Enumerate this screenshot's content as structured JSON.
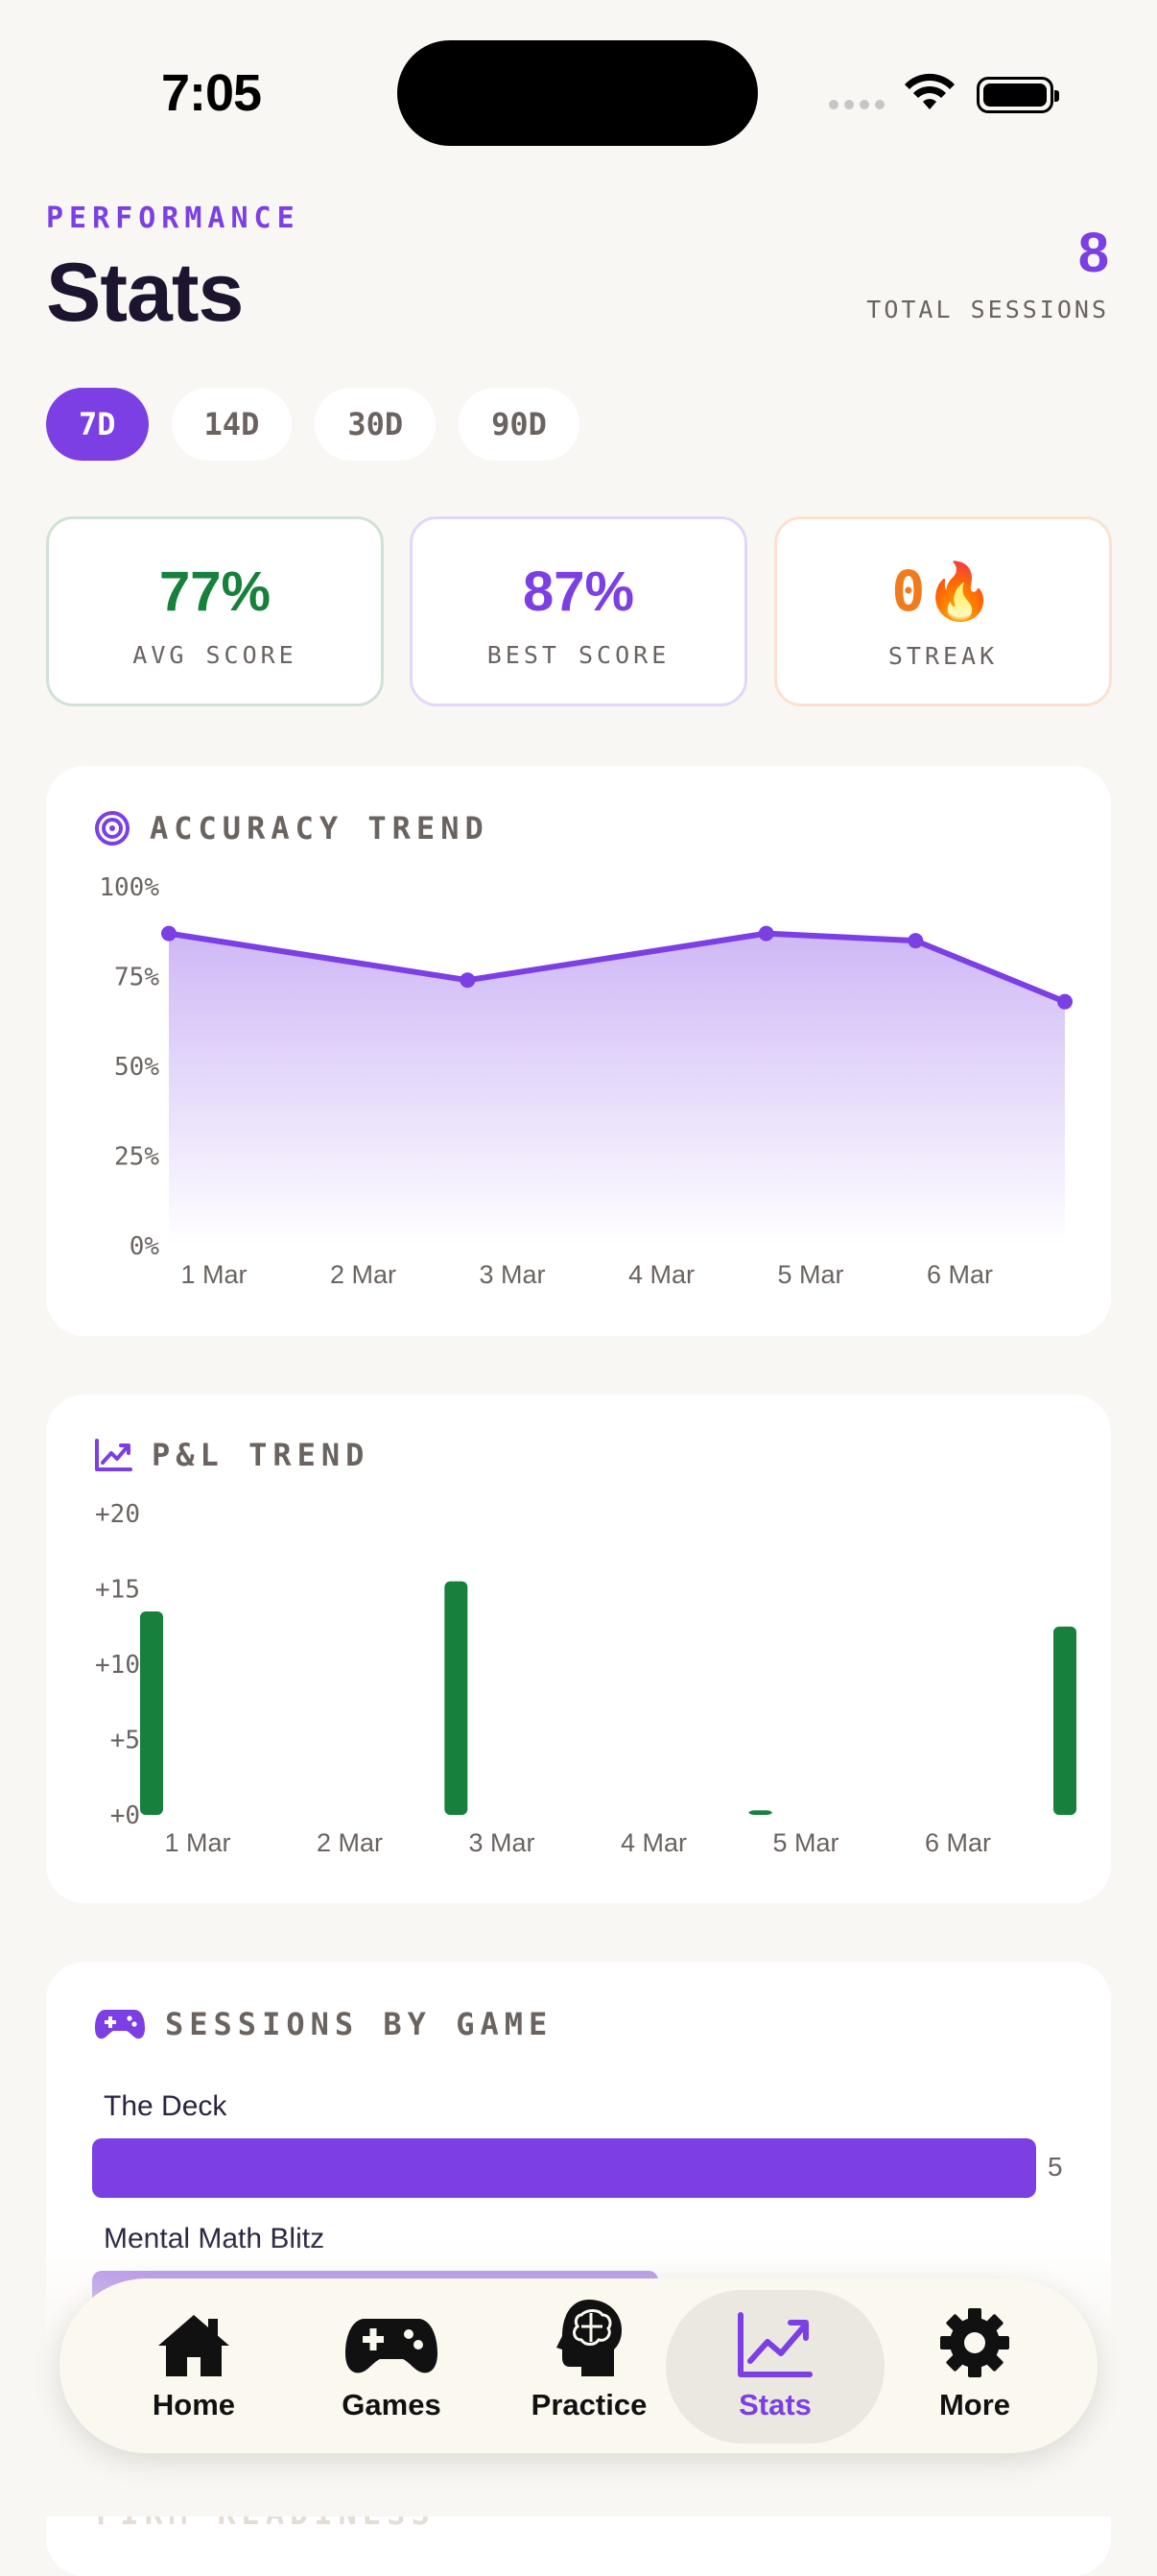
{
  "status_bar": {
    "time": "7:05"
  },
  "header": {
    "eyebrow": "PERFORMANCE",
    "title": "Stats",
    "total_sessions": "8",
    "total_sessions_label": "TOTAL SESSIONS"
  },
  "ranges": [
    "7D",
    "14D",
    "30D",
    "90D"
  ],
  "selected_range": "7D",
  "kpis": {
    "avg": {
      "value": "77%",
      "label": "AVG SCORE",
      "color": "#16803c"
    },
    "best": {
      "value": "87%",
      "label": "BEST SCORE",
      "color": "#7b3fe4"
    },
    "streak": {
      "value": "0",
      "emoji": "🔥",
      "label": "STREAK",
      "color": "#f07b1d"
    }
  },
  "accuracy": {
    "title": "ACCURACY TREND",
    "icon": "target-icon"
  },
  "pnl": {
    "title": "P&L TREND",
    "icon": "trending-up-icon"
  },
  "sessions": {
    "title": "SESSIONS BY GAME",
    "icon": "gamepad-icon",
    "games": [
      {
        "name": "The Deck",
        "count": "5",
        "fraction": 1.0
      },
      {
        "name": "Mental Math Blitz",
        "fraction": 0.6
      }
    ]
  },
  "partial_section": {
    "title": "FIRM READINESS"
  },
  "chart_data": [
    {
      "type": "area",
      "title": "ACCURACY TREND",
      "x_ticks": [
        "1 Mar",
        "2 Mar",
        "3 Mar",
        "4 Mar",
        "5 Mar",
        "6 Mar"
      ],
      "y_ticks": [
        "100%",
        "75%",
        "50%",
        "25%",
        "0%"
      ],
      "ylim": [
        0,
        100
      ],
      "points": [
        {
          "x": 1.0,
          "y": 87
        },
        {
          "x": 3.0,
          "y": 74
        },
        {
          "x": 5.0,
          "y": 87
        },
        {
          "x": 6.0,
          "y": 85
        },
        {
          "x": 7.0,
          "y": 68
        }
      ],
      "color": "#7b3fe4"
    },
    {
      "type": "bar",
      "title": "P&L TREND",
      "x_ticks": [
        "1 Mar",
        "2 Mar",
        "3 Mar",
        "4 Mar",
        "5 Mar",
        "6 Mar"
      ],
      "y_ticks": [
        "+20",
        "+15",
        "+10",
        "+5",
        "+0"
      ],
      "ylim": [
        0,
        20
      ],
      "bars": [
        {
          "x": 0.8,
          "value": 13.5
        },
        {
          "x": 2.8,
          "value": 15.5
        },
        {
          "x": 4.8,
          "value": 0.3
        },
        {
          "x": 6.8,
          "value": 12.5
        }
      ],
      "color": "#16803c"
    }
  ],
  "nav": {
    "items": [
      {
        "label": "Home",
        "icon": "home-icon"
      },
      {
        "label": "Games",
        "icon": "gamepad-icon"
      },
      {
        "label": "Practice",
        "icon": "brain-icon"
      },
      {
        "label": "Stats",
        "icon": "chart-icon"
      },
      {
        "label": "More",
        "icon": "gear-icon"
      }
    ],
    "active": "Stats"
  }
}
